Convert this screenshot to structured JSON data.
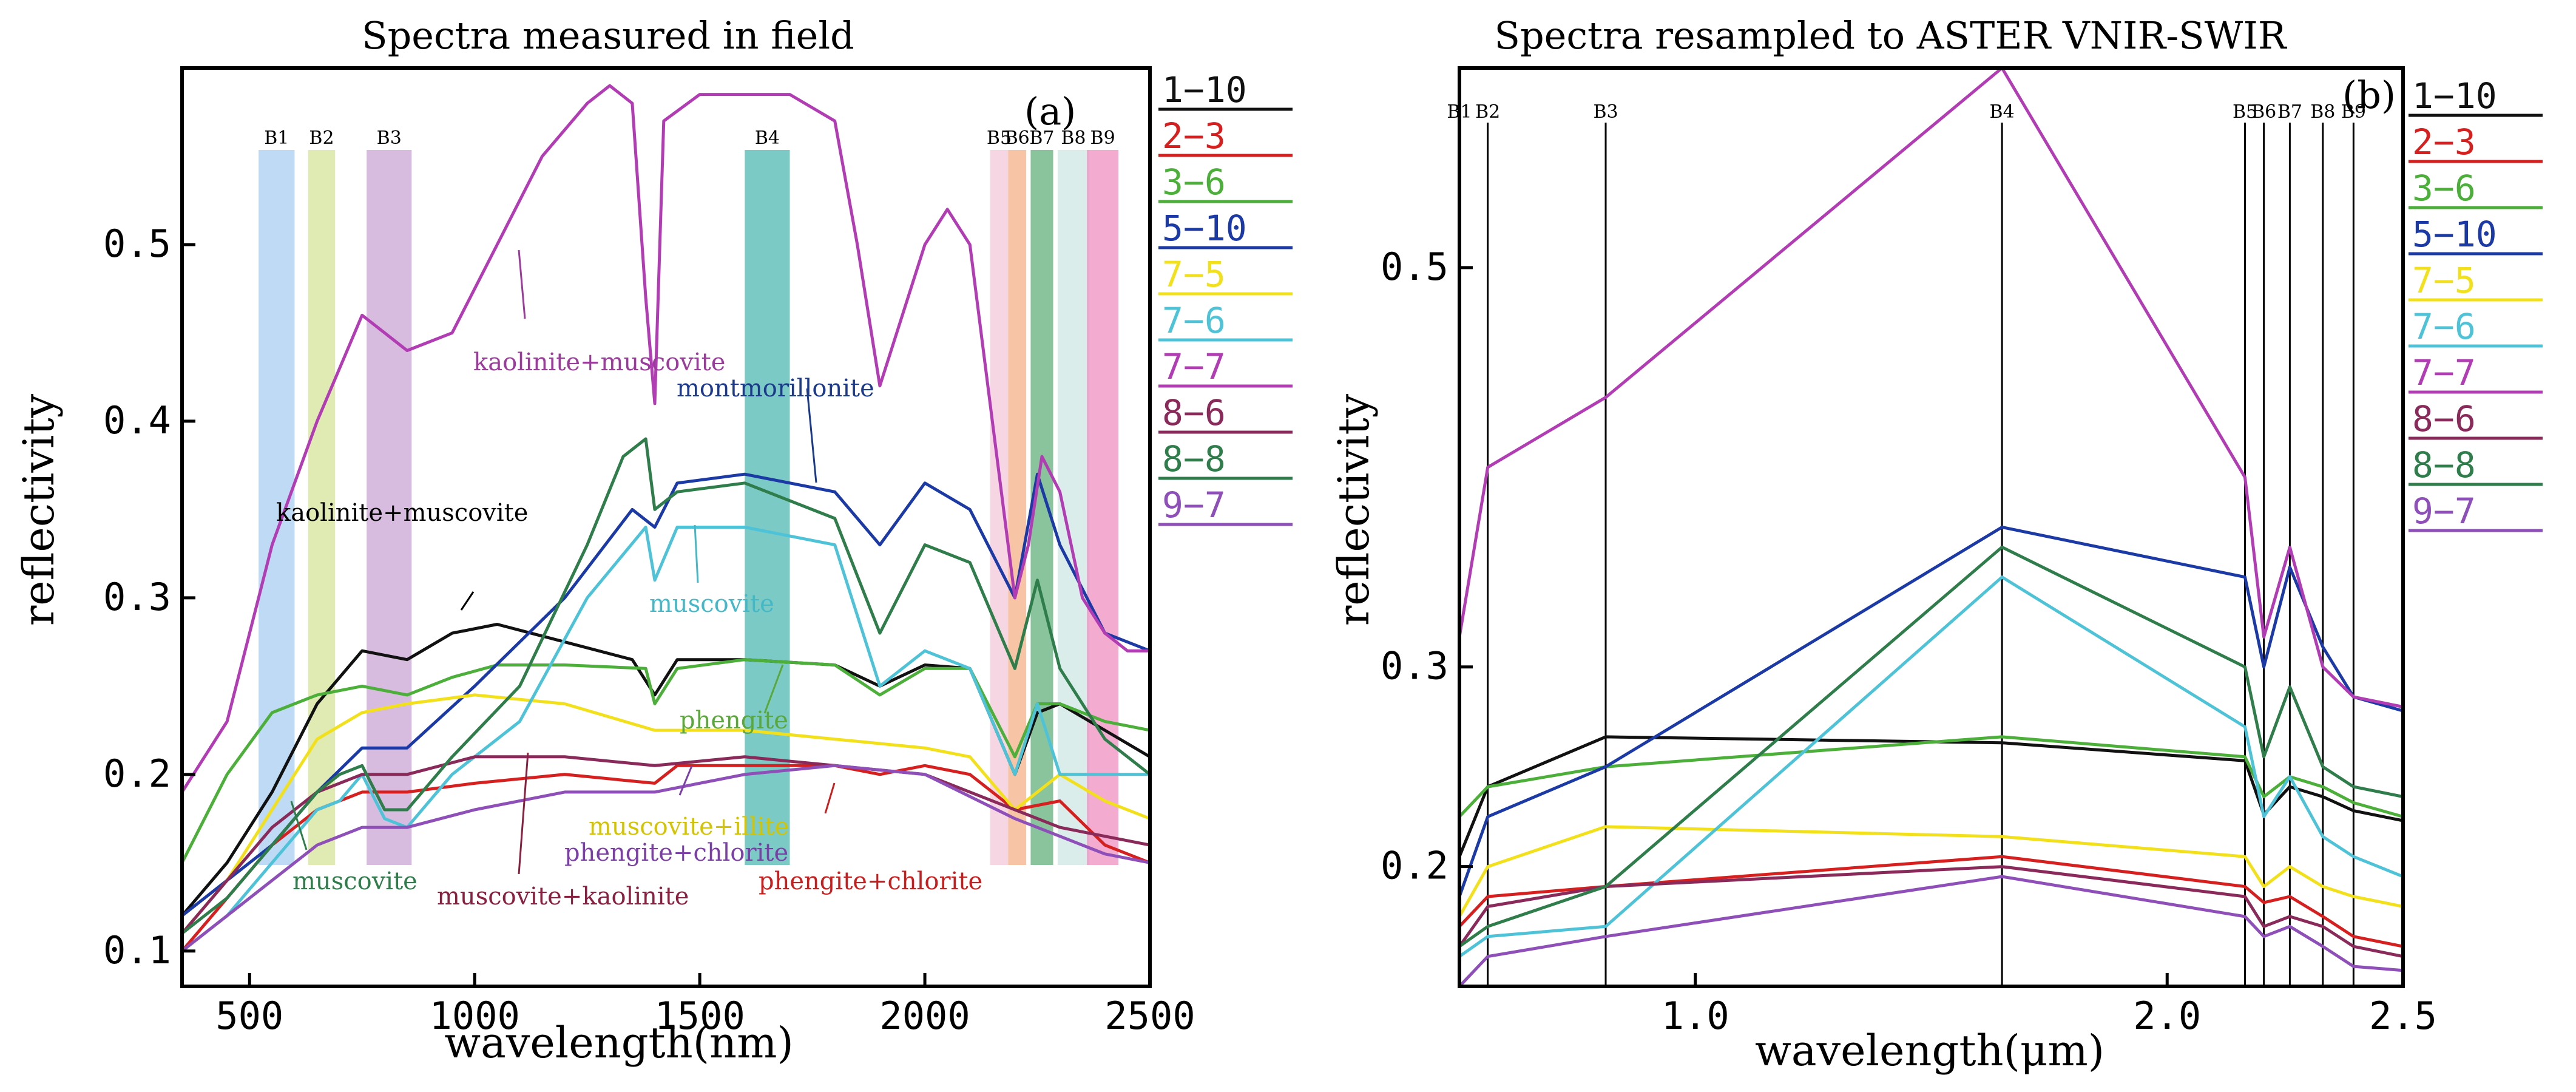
{
  "figure": {
    "panel_a": {
      "title": "Spectra measured in field",
      "panel_label": "(a)",
      "xlabel": "wavelength(nm)",
      "ylabel": "reflectivity"
    },
    "panel_b": {
      "title": "Spectra resampled to ASTER VNIR-SWIR",
      "panel_label": "(b)",
      "xlabel": "wavelength(μm)",
      "ylabel": "reflectivity"
    }
  },
  "chart_data": [
    {
      "type": "line",
      "title": "Spectra measured in field",
      "xlabel": "wavelength(nm)",
      "ylabel": "reflectivity",
      "xlim": [
        350,
        2500
      ],
      "ylim": [
        0.08,
        0.6
      ],
      "x_ticks": [
        500,
        1000,
        1500,
        2000,
        2500
      ],
      "x_tick_labels": [
        "500",
        "1000",
        "1500",
        "2000",
        "2500"
      ],
      "y_ticks": [
        0.1,
        0.2,
        0.3,
        0.4,
        0.5
      ],
      "y_tick_labels": [
        "0.1",
        "0.2",
        "0.3",
        "0.4",
        "0.5"
      ],
      "legend": [
        "1−10",
        "2−3",
        "3−6",
        "5−10",
        "7−5",
        "7−6",
        "7−7",
        "8−6",
        "8−8",
        "9−7"
      ],
      "bands": [
        {
          "name": "B1",
          "x": [
            520,
            600
          ],
          "color": "#a9cdf0"
        },
        {
          "name": "B2",
          "x": [
            630,
            690
          ],
          "color": "#d6e39a"
        },
        {
          "name": "B3",
          "x": [
            760,
            860
          ],
          "color": "#c9a6d6"
        },
        {
          "name": "B4",
          "x": [
            1600,
            1700
          ],
          "color": "#4fb8b1"
        },
        {
          "name": "B5",
          "x": [
            2145,
            2185
          ],
          "color": "#f4c8da"
        },
        {
          "name": "B6",
          "x": [
            2185,
            2225
          ],
          "color": "#f4b088"
        },
        {
          "name": "B7",
          "x": [
            2235,
            2285
          ],
          "color": "#63b07c"
        },
        {
          "name": "B8",
          "x": [
            2295,
            2365
          ],
          "color": "#cde7e4"
        },
        {
          "name": "B9",
          "x": [
            2360,
            2430
          ],
          "color": "#ef8fc0"
        }
      ],
      "annotations": [
        {
          "text": "kaolinite+muscovite",
          "color": "#9b3b9b"
        },
        {
          "text": "montmorillonite",
          "color": "#1b3a8c"
        },
        {
          "text": "kaolinite+muscovite",
          "color": "#000000"
        },
        {
          "text": "muscovite",
          "color": "#45b8c8"
        },
        {
          "text": "phengite",
          "color": "#5aa83a"
        },
        {
          "text": "muscovite+illite",
          "color": "#d4c400"
        },
        {
          "text": "phengite+chlorite",
          "color": "#7c3fa8"
        },
        {
          "text": "muscovite",
          "color": "#2f7d4a"
        },
        {
          "text": "muscovite+kaolinite",
          "color": "#8a2040"
        },
        {
          "text": "phengite+chlorite",
          "color": "#c81e1e"
        }
      ],
      "series": [
        {
          "name": "1−10",
          "color": "#111111",
          "x": [
            350,
            450,
            550,
            650,
            750,
            850,
            950,
            1050,
            1200,
            1350,
            1400,
            1450,
            1600,
            1800,
            1900,
            2000,
            2100,
            2200,
            2250,
            2300,
            2400,
            2500
          ],
          "values": [
            0.12,
            0.15,
            0.19,
            0.24,
            0.27,
            0.265,
            0.28,
            0.285,
            0.275,
            0.265,
            0.245,
            0.265,
            0.265,
            0.262,
            0.25,
            0.262,
            0.26,
            0.2,
            0.235,
            0.24,
            0.225,
            0.21
          ]
        },
        {
          "name": "2−3",
          "color": "#d62020",
          "x": [
            350,
            450,
            550,
            650,
            750,
            850,
            1000,
            1200,
            1400,
            1450,
            1600,
            1800,
            1900,
            2000,
            2100,
            2200,
            2300,
            2400,
            2500
          ],
          "values": [
            0.1,
            0.13,
            0.16,
            0.18,
            0.19,
            0.19,
            0.195,
            0.2,
            0.195,
            0.205,
            0.205,
            0.205,
            0.2,
            0.205,
            0.2,
            0.18,
            0.185,
            0.16,
            0.15
          ]
        },
        {
          "name": "3−6",
          "color": "#4caf3a",
          "x": [
            350,
            450,
            550,
            650,
            750,
            850,
            950,
            1050,
            1200,
            1380,
            1400,
            1450,
            1600,
            1800,
            1900,
            2000,
            2100,
            2200,
            2250,
            2300,
            2400,
            2500
          ],
          "values": [
            0.15,
            0.2,
            0.235,
            0.245,
            0.25,
            0.245,
            0.255,
            0.262,
            0.262,
            0.26,
            0.24,
            0.26,
            0.265,
            0.262,
            0.245,
            0.26,
            0.26,
            0.21,
            0.24,
            0.24,
            0.23,
            0.225
          ]
        },
        {
          "name": "5−10",
          "color": "#1c3aa5",
          "x": [
            350,
            450,
            550,
            650,
            750,
            850,
            1000,
            1200,
            1350,
            1400,
            1450,
            1600,
            1800,
            1900,
            2000,
            2100,
            2200,
            2250,
            2300,
            2400,
            2500
          ],
          "values": [
            0.12,
            0.14,
            0.16,
            0.19,
            0.215,
            0.215,
            0.25,
            0.3,
            0.35,
            0.34,
            0.365,
            0.37,
            0.36,
            0.33,
            0.365,
            0.35,
            0.3,
            0.37,
            0.33,
            0.28,
            0.27
          ]
        },
        {
          "name": "7−5",
          "color": "#f2e01a",
          "x": [
            350,
            450,
            550,
            650,
            750,
            850,
            1000,
            1200,
            1400,
            1600,
            1800,
            2000,
            2100,
            2200,
            2300,
            2400,
            2500
          ],
          "values": [
            0.11,
            0.14,
            0.18,
            0.22,
            0.235,
            0.24,
            0.245,
            0.24,
            0.225,
            0.225,
            0.22,
            0.215,
            0.21,
            0.18,
            0.2,
            0.185,
            0.175
          ]
        },
        {
          "name": "7−6",
          "color": "#4ec3d8",
          "x": [
            350,
            450,
            550,
            650,
            700,
            750,
            800,
            850,
            950,
            1100,
            1250,
            1380,
            1400,
            1450,
            1600,
            1800,
            1900,
            2000,
            2100,
            2200,
            2250,
            2300,
            2400,
            2500
          ],
          "values": [
            0.1,
            0.12,
            0.15,
            0.18,
            0.185,
            0.2,
            0.175,
            0.17,
            0.2,
            0.23,
            0.3,
            0.34,
            0.31,
            0.34,
            0.34,
            0.33,
            0.25,
            0.27,
            0.26,
            0.2,
            0.24,
            0.2,
            0.2,
            0.2
          ]
        },
        {
          "name": "7−7",
          "color": "#b23cb4",
          "x": [
            350,
            450,
            550,
            650,
            700,
            750,
            800,
            850,
            950,
            1050,
            1150,
            1250,
            1300,
            1350,
            1380,
            1400,
            1420,
            1500,
            1700,
            1800,
            1850,
            1900,
            2000,
            2050,
            2100,
            2150,
            2200,
            2230,
            2260,
            2300,
            2350,
            2400,
            2450,
            2500
          ],
          "values": [
            0.19,
            0.23,
            0.33,
            0.4,
            0.43,
            0.46,
            0.45,
            0.44,
            0.45,
            0.5,
            0.55,
            0.58,
            0.59,
            0.58,
            0.47,
            0.41,
            0.57,
            0.585,
            0.585,
            0.57,
            0.5,
            0.42,
            0.5,
            0.52,
            0.5,
            0.4,
            0.3,
            0.33,
            0.38,
            0.36,
            0.3,
            0.28,
            0.27,
            0.27
          ]
        },
        {
          "name": "8−6",
          "color": "#8a2a5a",
          "x": [
            350,
            450,
            550,
            650,
            750,
            850,
            1000,
            1200,
            1400,
            1600,
            1800,
            2000,
            2200,
            2300,
            2400,
            2500
          ],
          "values": [
            0.11,
            0.14,
            0.17,
            0.19,
            0.2,
            0.2,
            0.21,
            0.21,
            0.205,
            0.21,
            0.205,
            0.2,
            0.18,
            0.17,
            0.165,
            0.16
          ]
        },
        {
          "name": "8−8",
          "color": "#2f7d4a",
          "x": [
            350,
            450,
            550,
            650,
            700,
            750,
            800,
            850,
            950,
            1100,
            1250,
            1330,
            1380,
            1400,
            1450,
            1600,
            1800,
            1900,
            2000,
            2100,
            2200,
            2250,
            2300,
            2400,
            2500
          ],
          "values": [
            0.11,
            0.13,
            0.16,
            0.19,
            0.2,
            0.205,
            0.18,
            0.18,
            0.21,
            0.25,
            0.33,
            0.38,
            0.39,
            0.35,
            0.36,
            0.365,
            0.345,
            0.28,
            0.33,
            0.32,
            0.26,
            0.31,
            0.26,
            0.22,
            0.2
          ]
        },
        {
          "name": "9−7",
          "color": "#8e4fb8",
          "x": [
            350,
            450,
            550,
            650,
            750,
            850,
            1000,
            1200,
            1400,
            1600,
            1800,
            2000,
            2200,
            2300,
            2400,
            2500
          ],
          "values": [
            0.1,
            0.12,
            0.14,
            0.16,
            0.17,
            0.17,
            0.18,
            0.19,
            0.19,
            0.2,
            0.205,
            0.2,
            0.175,
            0.165,
            0.155,
            0.15
          ]
        }
      ]
    },
    {
      "type": "line",
      "title": "Spectra resampled to ASTER VNIR-SWIR",
      "xlabel": "wavelength(μm)",
      "ylabel": "reflectivity",
      "xlim": [
        0.5,
        2.5
      ],
      "ylim": [
        0.14,
        0.6
      ],
      "x_ticks": [
        1.0,
        2.0,
        2.5
      ],
      "x_tick_labels": [
        "1.0",
        "2.0",
        "2.5"
      ],
      "y_ticks": [
        0.2,
        0.3,
        0.5
      ],
      "y_tick_labels": [
        "0.2",
        "0.3",
        "0.5"
      ],
      "legend": [
        "1−10",
        "2−3",
        "3−6",
        "5−10",
        "7−5",
        "7−6",
        "7−7",
        "8−6",
        "8−8",
        "9−7"
      ],
      "band_lines": [
        {
          "name": "B1",
          "x": 0.5
        },
        {
          "name": "B2",
          "x": 0.56
        },
        {
          "name": "B3",
          "x": 0.81
        },
        {
          "name": "B4",
          "x": 1.65
        },
        {
          "name": "B5",
          "x": 2.165
        },
        {
          "name": "B6",
          "x": 2.205
        },
        {
          "name": "B7",
          "x": 2.26
        },
        {
          "name": "B8",
          "x": 2.33
        },
        {
          "name": "B9",
          "x": 2.395
        }
      ],
      "x": [
        0.5,
        0.56,
        0.81,
        1.65,
        2.165,
        2.205,
        2.26,
        2.33,
        2.395,
        2.5
      ],
      "series": [
        {
          "name": "1−10",
          "color": "#111111",
          "values": [
            0.205,
            0.24,
            0.265,
            0.262,
            0.253,
            0.226,
            0.24,
            0.235,
            0.228,
            0.223
          ]
        },
        {
          "name": "2−3",
          "color": "#d62020",
          "values": [
            0.17,
            0.185,
            0.19,
            0.205,
            0.19,
            0.182,
            0.185,
            0.175,
            0.165,
            0.16
          ]
        },
        {
          "name": "3−6",
          "color": "#4caf3a",
          "values": [
            0.225,
            0.24,
            0.25,
            0.265,
            0.255,
            0.235,
            0.245,
            0.24,
            0.232,
            0.225
          ]
        },
        {
          "name": "5−10",
          "color": "#1c3aa5",
          "values": [
            0.185,
            0.225,
            0.25,
            0.37,
            0.345,
            0.3,
            0.35,
            0.31,
            0.285,
            0.278
          ]
        },
        {
          "name": "7−5",
          "color": "#f2e01a",
          "values": [
            0.175,
            0.2,
            0.22,
            0.215,
            0.205,
            0.19,
            0.2,
            0.19,
            0.185,
            0.18
          ]
        },
        {
          "name": "7−6",
          "color": "#4ec3d8",
          "values": [
            0.155,
            0.165,
            0.17,
            0.345,
            0.27,
            0.225,
            0.245,
            0.215,
            0.205,
            0.195
          ]
        },
        {
          "name": "7−7",
          "color": "#b23cb4",
          "values": [
            0.315,
            0.4,
            0.435,
            0.6,
            0.395,
            0.315,
            0.36,
            0.3,
            0.285,
            0.28
          ]
        },
        {
          "name": "8−6",
          "color": "#8a2a5a",
          "values": [
            0.16,
            0.18,
            0.19,
            0.2,
            0.185,
            0.17,
            0.175,
            0.17,
            0.16,
            0.155
          ]
        },
        {
          "name": "8−8",
          "color": "#2f7d4a",
          "values": [
            0.16,
            0.17,
            0.19,
            0.36,
            0.3,
            0.255,
            0.29,
            0.25,
            0.24,
            0.235
          ]
        },
        {
          "name": "9−7",
          "color": "#8e4fb8",
          "values": [
            0.14,
            0.155,
            0.165,
            0.195,
            0.175,
            0.165,
            0.17,
            0.16,
            0.15,
            0.148
          ]
        }
      ]
    }
  ]
}
